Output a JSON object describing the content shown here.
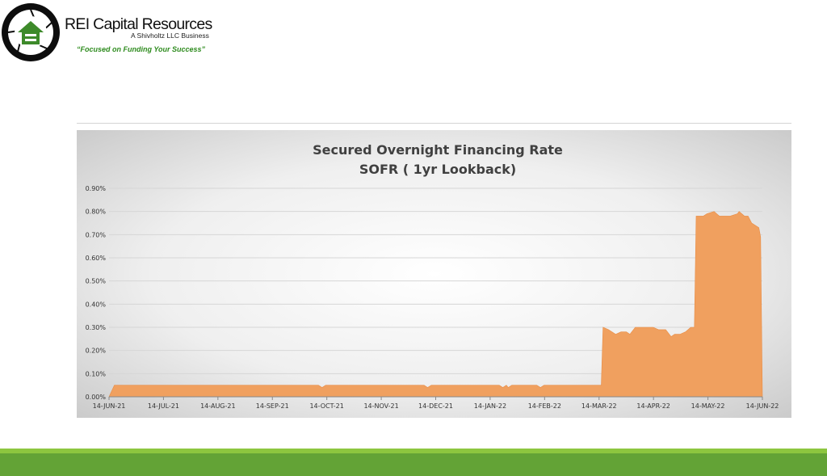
{
  "header": {
    "company_name": "REI Capital Resources",
    "company_sub": "A Shivholtz LLC Business",
    "slogan": "“Focused on Funding Your Success”",
    "logo_icon": "house-in-lens-logo-icon"
  },
  "colors": {
    "area_fill": "#f0a05f",
    "area_edge": "#e88c45",
    "brand_green": "#63a336",
    "brand_green_light": "#8dc63f",
    "logo_green": "#3d8a2a"
  },
  "chart_data": {
    "type": "area",
    "title": "Secured Overnight Financing Rate",
    "subtitle": "SOFR ( 1yr Lookback)",
    "xlabel": "",
    "ylabel": "",
    "ylim": [
      0,
      0.9
    ],
    "y_ticks": [
      "0.00%",
      "0.10%",
      "0.20%",
      "0.30%",
      "0.40%",
      "0.50%",
      "0.60%",
      "0.70%",
      "0.80%",
      "0.90%"
    ],
    "x_ticks": [
      "14-JUN-21",
      "14-JUL-21",
      "14-AUG-21",
      "14-SEP-21",
      "14-OCT-21",
      "14-NOV-21",
      "14-DEC-21",
      "14-JAN-22",
      "14-FEB-22",
      "14-MAR-22",
      "14-APR-22",
      "14-MAY-22",
      "14-JUN-22"
    ],
    "x_range": [
      "2021-06-14",
      "2022-06-14"
    ],
    "grid": true,
    "legend": "none",
    "series": [
      {
        "values": [
          [
            "2021-06-14",
            0.0
          ],
          [
            "2021-06-17",
            0.05
          ],
          [
            "2021-10-09",
            0.05
          ],
          [
            "2021-10-11",
            0.04
          ],
          [
            "2021-10-13",
            0.05
          ],
          [
            "2021-12-07",
            0.05
          ],
          [
            "2021-12-09",
            0.04
          ],
          [
            "2021-12-11",
            0.05
          ],
          [
            "2022-01-18",
            0.05
          ],
          [
            "2022-01-20",
            0.04
          ],
          [
            "2022-01-22",
            0.05
          ],
          [
            "2022-01-23",
            0.04
          ],
          [
            "2022-01-25",
            0.05
          ],
          [
            "2022-02-08",
            0.05
          ],
          [
            "2022-02-10",
            0.04
          ],
          [
            "2022-02-12",
            0.05
          ],
          [
            "2022-03-16",
            0.05
          ],
          [
            "2022-03-17",
            0.3
          ],
          [
            "2022-03-20",
            0.29
          ],
          [
            "2022-03-24",
            0.27
          ],
          [
            "2022-03-27",
            0.28
          ],
          [
            "2022-03-30",
            0.28
          ],
          [
            "2022-04-01",
            0.27
          ],
          [
            "2022-04-04",
            0.3
          ],
          [
            "2022-04-14",
            0.3
          ],
          [
            "2022-04-17",
            0.29
          ],
          [
            "2022-04-21",
            0.29
          ],
          [
            "2022-04-24",
            0.26
          ],
          [
            "2022-04-26",
            0.27
          ],
          [
            "2022-04-29",
            0.27
          ],
          [
            "2022-05-02",
            0.28
          ],
          [
            "2022-05-05",
            0.3
          ],
          [
            "2022-05-07",
            0.3
          ],
          [
            "2022-05-08",
            0.78
          ],
          [
            "2022-05-12",
            0.78
          ],
          [
            "2022-05-14",
            0.79
          ],
          [
            "2022-05-18",
            0.8
          ],
          [
            "2022-05-21",
            0.78
          ],
          [
            "2022-05-27",
            0.78
          ],
          [
            "2022-05-31",
            0.79
          ],
          [
            "2022-06-01",
            0.8
          ],
          [
            "2022-06-04",
            0.78
          ],
          [
            "2022-06-06",
            0.78
          ],
          [
            "2022-06-08",
            0.75
          ],
          [
            "2022-06-12",
            0.73
          ],
          [
            "2022-06-13",
            0.69
          ],
          [
            "2022-06-14",
            0.0
          ]
        ]
      }
    ]
  }
}
